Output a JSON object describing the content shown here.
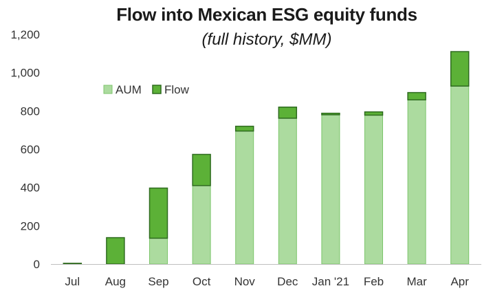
{
  "chart_data": {
    "type": "bar",
    "stacked": true,
    "title": "Flow into Mexican ESG equity funds",
    "subtitle": "(full history, $MM)",
    "categories": [
      "Jul",
      "Aug",
      "Sep",
      "Oct",
      "Nov",
      "Dec",
      "Jan '21",
      "Feb",
      "Mar",
      "Apr"
    ],
    "series": [
      {
        "name": "AUM",
        "values": [
          0,
          0,
          135,
          410,
          695,
          762,
          780,
          778,
          858,
          930
        ]
      },
      {
        "name": "Flow",
        "values": [
          4,
          138,
          262,
          163,
          25,
          58,
          8,
          17,
          38,
          180
        ]
      }
    ],
    "ylim": [
      0,
      1200
    ],
    "yticks": [
      0,
      200,
      400,
      600,
      800,
      1000,
      1200
    ],
    "ytick_labels": [
      "0",
      "200",
      "400",
      "600",
      "800",
      "1,000",
      "1,200"
    ],
    "grid": false,
    "legend_position": "upper-left",
    "colors": {
      "AUM_fill": "#acdb9f",
      "AUM_stroke": "#7cc56b",
      "Flow_fill": "#5cb137",
      "Flow_stroke": "#2e6b1f"
    }
  }
}
